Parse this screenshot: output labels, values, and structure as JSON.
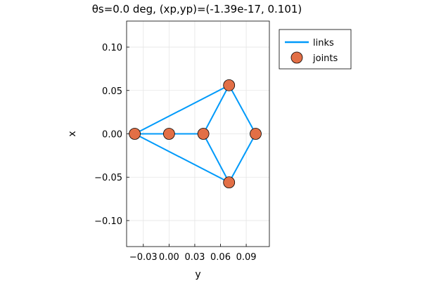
{
  "chart_data": {
    "type": "line",
    "title": "θs=0.0 deg, (xp,yp)=(-1.39e-17, 0.101)",
    "xlabel": "y",
    "ylabel": "x",
    "xlim": [
      -0.0495,
      0.117
    ],
    "ylim": [
      -0.13,
      0.13
    ],
    "xticks": [
      {
        "value": -0.03,
        "label": "−0.03"
      },
      {
        "value": 0.0,
        "label": "0.00"
      },
      {
        "value": 0.03,
        "label": "0.03"
      },
      {
        "value": 0.06,
        "label": "0.06"
      },
      {
        "value": 0.09,
        "label": "0.09"
      }
    ],
    "yticks": [
      {
        "value": 0.1,
        "label": "0.10"
      },
      {
        "value": 0.05,
        "label": "0.05"
      },
      {
        "value": 0.0,
        "label": "0.00"
      },
      {
        "value": -0.05,
        "label": "−0.05"
      },
      {
        "value": -0.1,
        "label": "−0.10"
      }
    ],
    "grid": true,
    "legend_position": "outside-right-top",
    "series": [
      {
        "name": "links",
        "kind": "line",
        "color": "#009AFA",
        "segments": [
          [
            [
              -0.04,
              0.0
            ],
            [
              0.0,
              0.0
            ]
          ],
          [
            [
              0.0,
              0.0
            ],
            [
              0.04,
              0.0
            ]
          ],
          [
            [
              -0.04,
              0.0
            ],
            [
              0.07,
              0.056
            ]
          ],
          [
            [
              -0.04,
              0.0
            ],
            [
              0.07,
              -0.056
            ]
          ],
          [
            [
              0.04,
              0.0
            ],
            [
              0.07,
              0.056
            ]
          ],
          [
            [
              0.04,
              0.0
            ],
            [
              0.07,
              -0.056
            ]
          ],
          [
            [
              0.07,
              0.056
            ],
            [
              0.101,
              0.0
            ]
          ],
          [
            [
              0.07,
              -0.056
            ],
            [
              0.101,
              0.0
            ]
          ]
        ]
      },
      {
        "name": "joints",
        "kind": "scatter",
        "color": "#E26F46",
        "points": [
          [
            -0.04,
            0.0
          ],
          [
            0.0,
            0.0
          ],
          [
            0.04,
            0.0
          ],
          [
            0.07,
            0.056
          ],
          [
            0.07,
            -0.056
          ],
          [
            0.101,
            0.0
          ]
        ]
      }
    ]
  }
}
